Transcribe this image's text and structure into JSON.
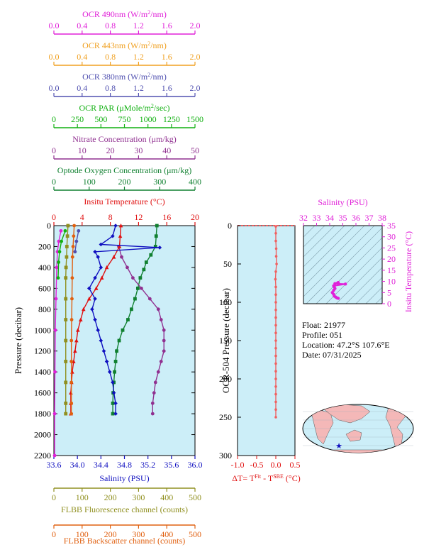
{
  "colors": {
    "ocr490": "#e020d8",
    "ocr443": "#f0a020",
    "ocr380": "#5050b0",
    "par": "#10b010",
    "nitrate": "#903090",
    "oxygen": "#108030",
    "temperature": "#e01010",
    "salinity": "#1010c0",
    "fluorescence": "#909020",
    "backscatter": "#e06010",
    "panel_bg": "#cceef8",
    "dt_line": "#f06060",
    "ts_magenta": "#e020d8",
    "land": "#f4b8b8"
  },
  "chart_data": [
    {
      "type": "line",
      "title": "",
      "ylabel": "Pressure (decibar)",
      "ylim": [
        2200,
        0
      ],
      "yticks": [
        "0",
        "200",
        "400",
        "600",
        "800",
        "1000",
        "1200",
        "1400",
        "1600",
        "1800",
        "2000",
        "2200"
      ],
      "axes_top": [
        {
          "key": "ocr490",
          "label": "OCR 490nm (W/m²/nm)",
          "ticks": [
            "0.0",
            "0.4",
            "0.8",
            "1.2",
            "1.6",
            "2.0"
          ]
        },
        {
          "key": "ocr443",
          "label": "OCR 443nm (W/m²/nm)",
          "ticks": [
            "0.0",
            "0.4",
            "0.8",
            "1.2",
            "1.6",
            "2.0"
          ]
        },
        {
          "key": "ocr380",
          "label": "OCR 380nm (W/m²/nm)",
          "ticks": [
            "0.0",
            "0.4",
            "0.8",
            "1.2",
            "1.6",
            "2.0"
          ]
        },
        {
          "key": "par",
          "label": "OCR PAR (μMole/m²/sec)",
          "ticks": [
            "0",
            "250",
            "500",
            "750",
            "1000",
            "1250",
            "1500"
          ]
        },
        {
          "key": "nitrate",
          "label": "Nitrate Concentration (μm/kg)",
          "ticks": [
            "0",
            "10",
            "20",
            "30",
            "40",
            "50"
          ]
        },
        {
          "key": "oxygen",
          "label": "Optode Oxygen Concentration (μm/kg)",
          "ticks": [
            "0",
            "100",
            "200",
            "300",
            "400"
          ]
        },
        {
          "key": "temperature",
          "label": "Insitu Temperature (°C)",
          "ticks": [
            "0",
            "4",
            "8",
            "12",
            "16",
            "20"
          ]
        }
      ],
      "axes_bottom": [
        {
          "key": "salinity",
          "label": "Salinity (PSU)",
          "ticks": [
            "33.6",
            "34.0",
            "34.4",
            "34.8",
            "35.2",
            "35.6",
            "36.0"
          ]
        },
        {
          "key": "fluorescence",
          "label": "FLBB Fluorescence channel (counts)",
          "ticks": [
            "0",
            "100",
            "200",
            "300",
            "400",
            "500"
          ]
        },
        {
          "key": "backscatter",
          "label": "FLBB Backscatter channel (counts)",
          "ticks": [
            "0",
            "100",
            "200",
            "300",
            "400",
            "500"
          ]
        }
      ],
      "series": [
        {
          "key": "oxygen",
          "xlim": [
            0,
            400
          ],
          "marker": "square",
          "points": [
            [
              292,
              0
            ],
            [
              290,
              100
            ],
            [
              288,
              200
            ],
            [
              275,
              280
            ],
            [
              262,
              350
            ],
            [
              255,
              420
            ],
            [
              245,
              500
            ],
            [
              238,
              600
            ],
            [
              230,
              700
            ],
            [
              220,
              800
            ],
            [
              210,
              900
            ],
            [
              195,
              1000
            ],
            [
              185,
              1100
            ],
            [
              178,
              1200
            ],
            [
              175,
              1300
            ],
            [
              172,
              1400
            ],
            [
              170,
              1500
            ],
            [
              168,
              1600
            ],
            [
              167,
              1700
            ],
            [
              167,
              1800
            ]
          ]
        },
        {
          "key": "nitrate",
          "xlim": [
            0,
            50
          ],
          "marker": "circle",
          "points": [
            [
              23,
              200
            ],
            [
              24,
              300
            ],
            [
              26,
              400
            ],
            [
              28,
              500
            ],
            [
              31,
              600
            ],
            [
              34,
              700
            ],
            [
              37,
              800
            ],
            [
              38,
              900
            ],
            [
              39,
              1000
            ],
            [
              39,
              1100
            ],
            [
              39,
              1200
            ],
            [
              38,
              1300
            ],
            [
              37,
              1400
            ],
            [
              36,
              1500
            ],
            [
              35.5,
              1600
            ],
            [
              35,
              1700
            ],
            [
              35,
              1800
            ]
          ]
        },
        {
          "key": "temperature",
          "xlim": [
            0,
            20
          ],
          "marker": "triangle",
          "points": [
            [
              9.5,
              0
            ],
            [
              9.4,
              100
            ],
            [
              9.3,
              200
            ],
            [
              8.5,
              300
            ],
            [
              7.5,
              400
            ],
            [
              6.8,
              500
            ],
            [
              6.0,
              600
            ],
            [
              5.0,
              700
            ],
            [
              4.2,
              800
            ],
            [
              3.8,
              900
            ],
            [
              3.4,
              1000
            ],
            [
              3.2,
              1100
            ],
            [
              3.0,
              1200
            ],
            [
              2.8,
              1300
            ],
            [
              2.6,
              1400
            ],
            [
              2.5,
              1500
            ],
            [
              2.4,
              1600
            ],
            [
              2.4,
              1700
            ],
            [
              2.4,
              1800
            ]
          ]
        },
        {
          "key": "salinity",
          "xlim": [
            33.6,
            36.0
          ],
          "marker": "diamond",
          "points": [
            [
              34.65,
              0
            ],
            [
              34.6,
              100
            ],
            [
              34.4,
              180
            ],
            [
              35.4,
              210
            ],
            [
              34.3,
              250
            ],
            [
              34.35,
              300
            ],
            [
              34.4,
              400
            ],
            [
              34.3,
              500
            ],
            [
              34.2,
              600
            ],
            [
              34.3,
              700
            ],
            [
              34.25,
              800
            ],
            [
              34.3,
              900
            ],
            [
              34.35,
              1000
            ],
            [
              34.4,
              1100
            ],
            [
              34.45,
              1200
            ],
            [
              34.5,
              1300
            ],
            [
              34.55,
              1400
            ],
            [
              34.6,
              1500
            ],
            [
              34.62,
              1600
            ],
            [
              34.65,
              1700
            ],
            [
              34.65,
              1800
            ]
          ]
        },
        {
          "key": "fluorescence",
          "xlim": [
            0,
            500
          ],
          "marker": "square",
          "points": [
            [
              50,
              0
            ],
            [
              48,
              100
            ],
            [
              46,
              200
            ],
            [
              45,
              300
            ],
            [
              43,
              400
            ],
            [
              42,
              500
            ],
            [
              42,
              700
            ],
            [
              42,
              900
            ],
            [
              42,
              1100
            ],
            [
              42,
              1300
            ],
            [
              42,
              1500
            ],
            [
              42,
              1700
            ],
            [
              42,
              1800
            ]
          ]
        },
        {
          "key": "backscatter",
          "xlim": [
            0,
            500
          ],
          "marker": "circle",
          "points": [
            [
              72,
              0
            ],
            [
              70,
              100
            ],
            [
              68,
              200
            ],
            [
              66,
              300
            ],
            [
              65,
              500
            ],
            [
              64,
              700
            ],
            [
              63,
              900
            ],
            [
              62,
              1100
            ],
            [
              62,
              1300
            ],
            [
              62,
              1500
            ],
            [
              62,
              1700
            ],
            [
              62,
              1800
            ]
          ]
        },
        {
          "key": "ocr490",
          "xlim": [
            0,
            2.0
          ],
          "marker": "circle",
          "points": [
            [
              0.1,
              50
            ],
            [
              0.07,
              150
            ],
            [
              0.05,
              250
            ],
            [
              0.04,
              400
            ],
            [
              0.03,
              700
            ],
            [
              0.02,
              1000
            ],
            [
              0.015,
              1400
            ],
            [
              0.01,
              1800
            ],
            [
              0.01,
              2200
            ]
          ]
        },
        {
          "key": "par",
          "xlim": [
            0,
            1500
          ],
          "marker": "circle",
          "points": [
            [
              120,
              50
            ],
            [
              80,
              150
            ],
            [
              60,
              250
            ],
            [
              50,
              350
            ],
            [
              45,
              500
            ]
          ]
        },
        {
          "key": "ocr380",
          "xlim": [
            0,
            2.0
          ],
          "marker": "circle",
          "points": [
            [
              0.35,
              50
            ],
            [
              0.32,
              150
            ],
            [
              0.3,
              250
            ]
          ]
        }
      ]
    },
    {
      "type": "line",
      "title": "",
      "xlabel": "ΔT= T^Fit - T^SBE (°C)",
      "ylabel": "OCR-504 Pressure (decibar)",
      "xlim": [
        -1.0,
        0.5
      ],
      "ylim": [
        300,
        0
      ],
      "xticks": [
        "-1.0",
        "-0.5",
        "0.0",
        "0.5"
      ],
      "yticks": [
        "0",
        "50",
        "100",
        "150",
        "200",
        "250",
        "300"
      ],
      "series": [
        {
          "key": "dt",
          "points": [
            [
              0,
              1
            ],
            [
              0,
              10
            ],
            [
              0,
              20
            ],
            [
              0.01,
              30
            ],
            [
              0.01,
              40
            ],
            [
              0.02,
              50
            ],
            [
              0,
              60
            ],
            [
              -0.01,
              70
            ],
            [
              0,
              80
            ],
            [
              0,
              90
            ],
            [
              0,
              100
            ],
            [
              0,
              110
            ],
            [
              0,
              120
            ],
            [
              0,
              130
            ],
            [
              0,
              140
            ],
            [
              0,
              150
            ],
            [
              0,
              160
            ],
            [
              0,
              170
            ],
            [
              0,
              180
            ],
            [
              0,
              190
            ],
            [
              0,
              200
            ],
            [
              0,
              210
            ],
            [
              0,
              220
            ],
            [
              0,
              230
            ],
            [
              0,
              240
            ],
            [
              0,
              250
            ]
          ]
        }
      ]
    },
    {
      "type": "scatter",
      "title": "",
      "xlabel": "Salinity (PSU)",
      "ylabel": "Insitu Temperature (°C)",
      "xlim": [
        32,
        38
      ],
      "ylim": [
        0,
        35
      ],
      "xticks": [
        "32",
        "33",
        "34",
        "35",
        "36",
        "37",
        "38"
      ],
      "yticks": [
        "0",
        "5",
        "10",
        "15",
        "20",
        "25",
        "30",
        "35"
      ],
      "series": [
        {
          "key": "ts",
          "points": [
            [
              34.65,
              9.5
            ],
            [
              34.6,
              9.3
            ],
            [
              34.4,
              9.0
            ],
            [
              35.2,
              8.8
            ],
            [
              34.3,
              8.0
            ],
            [
              34.35,
              7.5
            ],
            [
              34.4,
              6.8
            ],
            [
              34.3,
              6.0
            ],
            [
              34.2,
              5.0
            ],
            [
              34.3,
              4.2
            ],
            [
              34.35,
              3.4
            ],
            [
              34.45,
              3.0
            ],
            [
              34.55,
              2.6
            ],
            [
              34.65,
              2.4
            ]
          ]
        }
      ]
    }
  ],
  "info": {
    "float": "Float:  21977",
    "profile": "Profile:  051",
    "location": "Location:  47.2°S  107.6°E",
    "date": "Date:  07/31/2025"
  },
  "map": {
    "marker_label": "★"
  }
}
